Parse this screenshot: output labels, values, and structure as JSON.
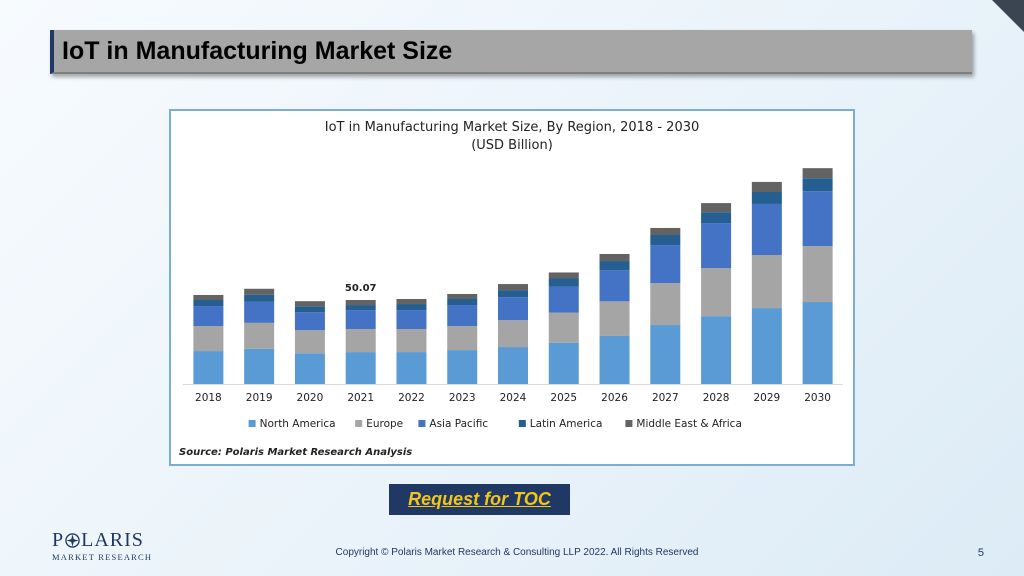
{
  "slide": {
    "title": "IoT in Manufacturing Market Size",
    "page_number": "5",
    "copyright": "Copyright © Polaris Market Research & Consulting LLP 2022. All Rights Reserved",
    "toc_button_label": "Request for TOC",
    "logo": {
      "name_part1": "P",
      "name_part2": "LARIS",
      "tagline": "MARKET RESEARCH"
    },
    "colors": {
      "title_bar": "#a6a6a6",
      "navy": "#1f3864",
      "toc_text": "#f5c518"
    }
  },
  "chart_data": {
    "type": "bar",
    "stacked": true,
    "title": "IoT in Manufacturing Market Size, By Region, 2018 - 2030",
    "subtitle": "(USD Billion)",
    "source": "Source: Polaris Market Research Analysis",
    "categories": [
      "2018",
      "2019",
      "2020",
      "2021",
      "2022",
      "2023",
      "2024",
      "2025",
      "2026",
      "2027",
      "2028",
      "2029",
      "2030"
    ],
    "series": [
      {
        "name": "North America",
        "color": "#5b9bd5",
        "values": [
          19.6,
          20.9,
          18.3,
          19.0,
          19.0,
          20.2,
          22.0,
          24.5,
          28.6,
          35.1,
          40.4,
          45.2,
          48.8
        ]
      },
      {
        "name": "Europe",
        "color": "#a5a5a5",
        "values": [
          14.9,
          15.5,
          13.7,
          13.7,
          13.7,
          14.3,
          16.0,
          18.0,
          20.6,
          25.0,
          28.6,
          31.6,
          33.3
        ]
      },
      {
        "name": "Asia Pacific",
        "color": "#4472c4",
        "values": [
          11.9,
          12.5,
          10.7,
          11.3,
          11.3,
          12.5,
          13.7,
          15.5,
          18.6,
          22.6,
          26.8,
          30.4,
          32.7
        ]
      },
      {
        "name": "Latin America",
        "color": "#255e91",
        "values": [
          3.6,
          4.2,
          3.6,
          3.0,
          3.6,
          3.6,
          4.2,
          4.8,
          5.4,
          6.0,
          6.5,
          7.1,
          7.7
        ]
      },
      {
        "name": "Middle East & Africa",
        "color": "#636363",
        "values": [
          3.0,
          3.6,
          3.0,
          3.0,
          3.0,
          3.0,
          3.6,
          3.6,
          4.2,
          4.2,
          5.4,
          6.0,
          6.0
        ]
      }
    ],
    "annotations": [
      {
        "category": "2021",
        "label": "50.07"
      }
    ],
    "ylim": [
      0,
      128
    ],
    "grid": false,
    "legend_position": "bottom"
  }
}
